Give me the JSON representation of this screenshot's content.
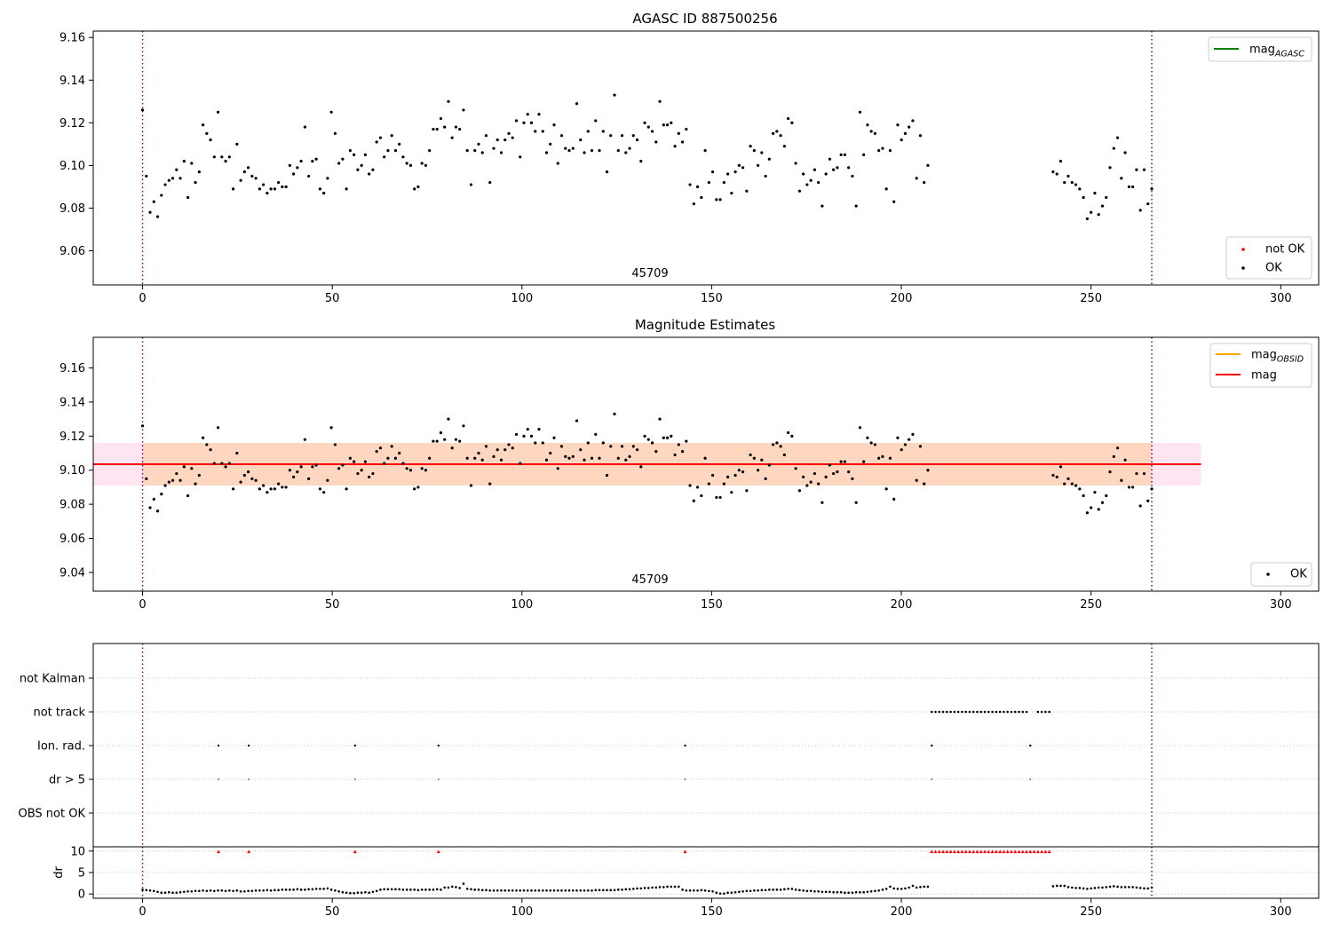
{
  "chart_data": [
    {
      "type": "scatter",
      "title": "AGASC ID 887500256",
      "annotation": "45709",
      "xlim": [
        -13,
        310
      ],
      "ylim": [
        9.044,
        9.163
      ],
      "xticks": [
        0,
        50,
        100,
        150,
        200,
        250,
        300
      ],
      "yticks": [
        "9.06",
        "9.08",
        "9.10",
        "9.12",
        "9.14",
        "9.16"
      ],
      "vlines": [
        0,
        266
      ],
      "legend_top": [
        {
          "label": "mag",
          "sub": "AGASC",
          "color": "#008000",
          "kind": "line"
        }
      ],
      "legend_bottom": [
        {
          "label": "not OK",
          "color": "#ff0000",
          "kind": "dot"
        },
        {
          "label": "OK",
          "color": "#000000",
          "kind": "dot"
        }
      ],
      "series": [
        {
          "name": "OK",
          "color": "#000000",
          "x_start": 0,
          "x_end": 207,
          "values": [
            9.126,
            9.095,
            9.078,
            9.083,
            9.076,
            9.086,
            9.091,
            9.093,
            9.094,
            9.098,
            9.094,
            9.102,
            9.085,
            9.101,
            9.092,
            9.097,
            9.119,
            9.115,
            9.112,
            9.104,
            9.125,
            9.104,
            9.102,
            9.104,
            9.089,
            9.11,
            9.093,
            9.097,
            9.099,
            9.095,
            9.094,
            9.089,
            9.091,
            9.087,
            9.089,
            9.089,
            9.092,
            9.09,
            9.09,
            9.1,
            9.096,
            9.099,
            9.102,
            9.118,
            9.095,
            9.102,
            9.103,
            9.089,
            9.087,
            9.094,
            9.125,
            9.115,
            9.101,
            9.103,
            9.089,
            9.107,
            9.105,
            9.098,
            9.1,
            9.105,
            9.096,
            9.098,
            9.111,
            9.113,
            9.104,
            9.107,
            9.114,
            9.107,
            9.11,
            9.104,
            9.101,
            9.1,
            9.089,
            9.09,
            9.101,
            9.1,
            9.107,
            9.117,
            9.117,
            9.122,
            9.118,
            9.13,
            9.113,
            9.118,
            9.117,
            9.126,
            9.107,
            9.091,
            9.107,
            9.11,
            9.106,
            9.114,
            9.092,
            9.108,
            9.112,
            9.106,
            9.112,
            9.115,
            9.113,
            9.121,
            9.104,
            9.12,
            9.124,
            9.12,
            9.116,
            9.124,
            9.116,
            9.106,
            9.11,
            9.119,
            9.101,
            9.114,
            9.108,
            9.107,
            9.108,
            9.129,
            9.112,
            9.106,
            9.116,
            9.107,
            9.121,
            9.107,
            9.116,
            9.097,
            9.114,
            9.133,
            9.107,
            9.114,
            9.106,
            9.108,
            9.114,
            9.112,
            9.102,
            9.12,
            9.118,
            9.116,
            9.111,
            9.13,
            9.119,
            9.119,
            9.12,
            9.109,
            9.115,
            9.111,
            9.117,
            9.091,
            9.082,
            9.09,
            9.085,
            9.107,
            9.092,
            9.097,
            9.084,
            9.084,
            9.092,
            9.096,
            9.087,
            9.097,
            9.1,
            9.099,
            9.088,
            9.109,
            9.107,
            9.1,
            9.106,
            9.095,
            9.103,
            9.115,
            9.116,
            9.114,
            9.109,
            9.122,
            9.12,
            9.101,
            9.088,
            9.096,
            9.091,
            9.093,
            9.098,
            9.092,
            9.081,
            9.096,
            9.103,
            9.098,
            9.099,
            9.105,
            9.105,
            9.099,
            9.095,
            9.081,
            9.125,
            9.105,
            9.119,
            9.116,
            9.115,
            9.107,
            9.108,
            9.089,
            9.107,
            9.083,
            9.119,
            9.112,
            9.115,
            9.118,
            9.121,
            9.094,
            9.114,
            9.092,
            9.1
          ]
        },
        {
          "name": "OK",
          "color": "#000000",
          "x_start": 240,
          "x_end": 266,
          "values": [
            9.097,
            9.096,
            9.102,
            9.092,
            9.095,
            9.092,
            9.091,
            9.089,
            9.085,
            9.075,
            9.078,
            9.087,
            9.077,
            9.081,
            9.085,
            9.099,
            9.108,
            9.113,
            9.094,
            9.106,
            9.09,
            9.09,
            9.098,
            9.079,
            9.098,
            9.082,
            9.089
          ]
        }
      ]
    },
    {
      "type": "scatter",
      "title": "Magnitude Estimates",
      "annotation": "45709",
      "xlim": [
        -13,
        310
      ],
      "ylim": [
        9.029,
        9.178
      ],
      "xticks": [
        0,
        50,
        100,
        150,
        200,
        250,
        300
      ],
      "yticks": [
        "9.04",
        "9.06",
        "9.08",
        "9.10",
        "9.12",
        "9.14",
        "9.16"
      ],
      "vlines": [
        0,
        266
      ],
      "mag": 9.1035,
      "band": [
        9.091,
        9.116
      ],
      "band_x": [
        -13,
        279
      ],
      "legend_top": [
        {
          "label": "mag",
          "sub": "OBSID",
          "color": "#ffa500",
          "kind": "line"
        },
        {
          "label": "mag",
          "sub": "",
          "color": "#ff0000",
          "kind": "line"
        }
      ],
      "legend_bottom": [
        {
          "label": "OK",
          "color": "#000000",
          "kind": "dot"
        }
      ]
    },
    {
      "type": "scatter",
      "xlim": [
        -13,
        310
      ],
      "flag_labels": [
        "not Kalman",
        "not track",
        "Ion. rad.",
        "dr > 5",
        "OBS not OK"
      ],
      "flag_ion_x": [
        20,
        28,
        56,
        78,
        143,
        208,
        234
      ],
      "flag_track_x_start": 208,
      "flag_track_x_end": 239,
      "flag_track_gap": [
        234,
        235
      ],
      "dr_ylabel": "dr",
      "dr_yticks": [
        "0",
        "5",
        "10"
      ],
      "dr_ylim": [
        -1,
        11
      ],
      "dr_clip_value": 10,
      "xticks": [
        0,
        50,
        100,
        150,
        200,
        250,
        300
      ],
      "vlines": [
        0,
        266
      ],
      "dr_segments": [
        {
          "x_start": 0,
          "x_end": 207,
          "values": [
            1.0,
            0.9,
            0.8,
            0.7,
            0.5,
            0.3,
            0.3,
            0.4,
            0.3,
            0.3,
            0.4,
            0.5,
            0.6,
            0.6,
            0.7,
            0.7,
            0.8,
            0.7,
            0.8,
            0.7,
            0.8,
            0.8,
            0.7,
            0.8,
            0.7,
            0.8,
            0.6,
            0.6,
            0.7,
            0.7,
            0.8,
            0.8,
            0.8,
            0.9,
            0.8,
            0.9,
            0.9,
            1.0,
            1.0,
            1.0,
            1.0,
            1.1,
            1.0,
            1.0,
            1.1,
            1.1,
            1.2,
            1.2,
            1.2,
            1.3,
            1.0,
            0.8,
            0.6,
            0.4,
            0.3,
            0.2,
            0.2,
            0.3,
            0.3,
            0.4,
            0.3,
            0.5,
            0.7,
            1.0,
            1.1,
            1.1,
            1.1,
            1.1,
            1.1,
            1.0,
            1.0,
            1.0,
            1.0,
            0.9,
            1.0,
            1.0,
            1.0,
            1.0,
            1.1,
            1.0,
            1.5,
            1.5,
            1.7,
            1.6,
            1.4,
            2.4,
            1.2,
            1.1,
            1.0,
            1.0,
            0.9,
            0.9,
            0.8,
            0.8,
            0.8,
            0.8,
            0.8,
            0.8,
            0.8,
            0.8,
            0.8,
            0.8,
            0.8,
            0.8,
            0.8,
            0.8,
            0.8,
            0.8,
            0.8,
            0.8,
            0.8,
            0.8,
            0.8,
            0.8,
            0.8,
            0.8,
            0.8,
            0.8,
            0.8,
            0.8,
            0.9,
            0.9,
            0.9,
            0.9,
            0.9,
            0.9,
            1.0,
            1.0,
            1.1,
            1.1,
            1.2,
            1.3,
            1.3,
            1.4,
            1.4,
            1.5,
            1.5,
            1.6,
            1.6,
            1.7,
            1.7,
            1.7,
            1.7,
            1.0,
            0.8,
            0.8,
            0.8,
            0.8,
            0.9,
            0.8,
            0.7,
            0.6,
            0.3,
            0.1,
            0.1,
            0.3,
            0.3,
            0.4,
            0.5,
            0.6,
            0.7,
            0.7,
            0.8,
            0.8,
            0.9,
            0.9,
            1.0,
            1.0,
            1.0,
            1.0,
            1.1,
            1.2,
            1.2,
            1.0,
            0.9,
            0.8,
            0.7,
            0.7,
            0.6,
            0.6,
            0.5,
            0.5,
            0.5,
            0.4,
            0.4,
            0.4,
            0.3,
            0.3,
            0.3,
            0.4,
            0.4,
            0.4,
            0.5,
            0.6,
            0.7,
            0.8,
            1.0,
            1.2,
            1.7,
            1.3,
            1.2,
            1.2,
            1.3,
            1.5,
            1.9,
            1.5,
            1.6,
            1.7,
            1.7
          ]
        },
        {
          "x_start": 240,
          "x_end": 266,
          "values": [
            1.8,
            1.9,
            1.9,
            1.9,
            1.6,
            1.5,
            1.4,
            1.4,
            1.3,
            1.2,
            1.3,
            1.4,
            1.5,
            1.5,
            1.6,
            1.7,
            1.8,
            1.7,
            1.6,
            1.6,
            1.6,
            1.6,
            1.5,
            1.4,
            1.3,
            1.3,
            1.5
          ]
        }
      ]
    }
  ]
}
